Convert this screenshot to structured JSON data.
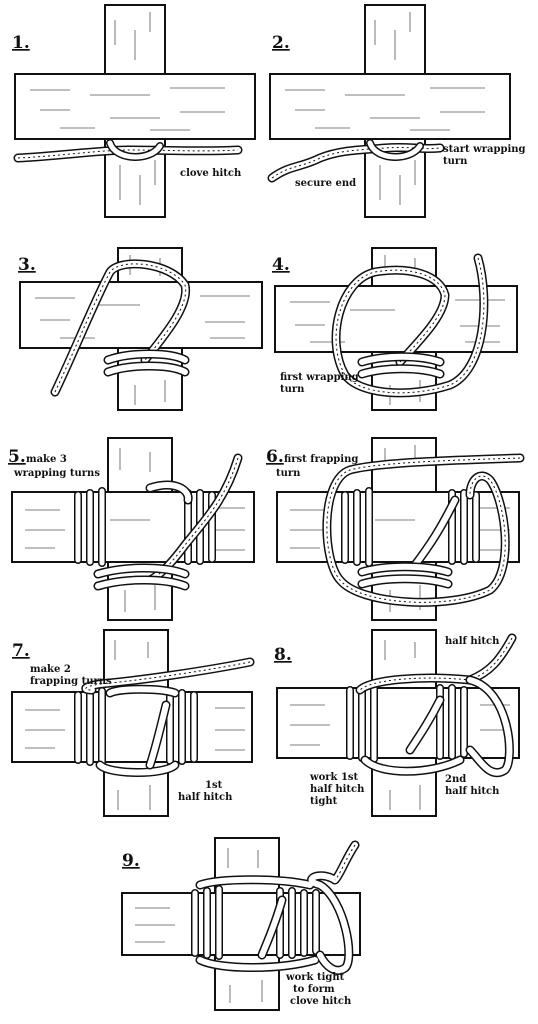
{
  "steps": [
    {
      "number": "1.",
      "labels": [
        "clove hitch"
      ]
    },
    {
      "number": "2.",
      "labels": [
        "start wrapping",
        "turn",
        "secure end"
      ]
    },
    {
      "number": "3.",
      "labels": []
    },
    {
      "number": "4.",
      "labels": [
        "first wrapping",
        "turn"
      ]
    },
    {
      "number": "5.",
      "labels": [
        "make 3",
        "wrapping turns"
      ]
    },
    {
      "number": "6.",
      "labels": [
        "first frapping",
        "turn"
      ]
    },
    {
      "number": "7.",
      "labels": [
        "make 2",
        "frapping turns",
        "1st",
        "half hitch"
      ]
    },
    {
      "number": "8.",
      "labels": [
        "half hitch",
        "work 1st",
        "half hitch",
        "tight",
        "2nd",
        "half hitch"
      ]
    },
    {
      "number": "9.",
      "labels": [
        "work tight",
        "to form",
        "clove hitch"
      ]
    }
  ]
}
